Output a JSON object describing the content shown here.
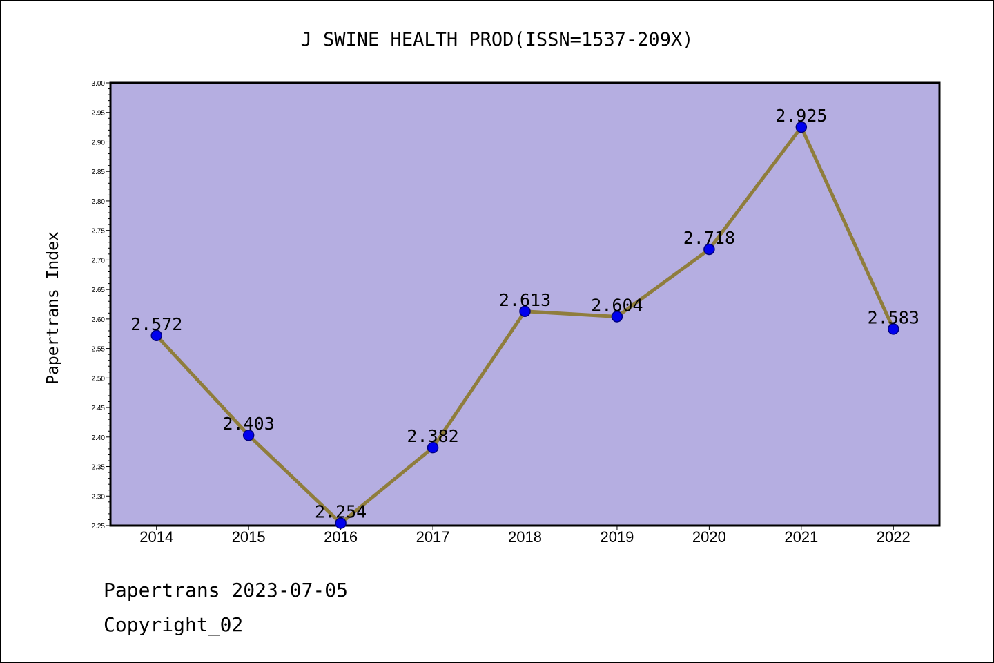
{
  "chart_data": {
    "type": "line",
    "title": "J SWINE HEALTH PROD(ISSN=1537-209X)",
    "ylabel": "Papertrans Index",
    "xlabel": "",
    "categories": [
      "2014",
      "2015",
      "2016",
      "2017",
      "2018",
      "2019",
      "2020",
      "2021",
      "2022"
    ],
    "values": [
      2.572,
      2.403,
      2.254,
      2.382,
      2.613,
      2.604,
      2.718,
      2.925,
      2.583
    ],
    "data_labels": [
      "2.572",
      "2.403",
      "2.254",
      "2.382",
      "2.613",
      "2.604",
      "2.718",
      "2.925",
      "2.583"
    ],
    "ylim": [
      2.25,
      3.0
    ],
    "yticks": [
      "2.25",
      "2.30",
      "2.35",
      "2.40",
      "2.45",
      "2.50",
      "2.55",
      "2.60",
      "2.65",
      "2.70",
      "2.75",
      "2.80",
      "2.85",
      "2.90",
      "2.95",
      "3.00"
    ],
    "grid": false,
    "legend": "none",
    "colors": {
      "plot_background": "#b5aee1",
      "line": "#8f7d3c",
      "marker": "#0000ee",
      "marker_edge": "#000080"
    }
  },
  "footer": {
    "line1": "Papertrans 2023-07-05",
    "line2": "Copyright_02"
  }
}
